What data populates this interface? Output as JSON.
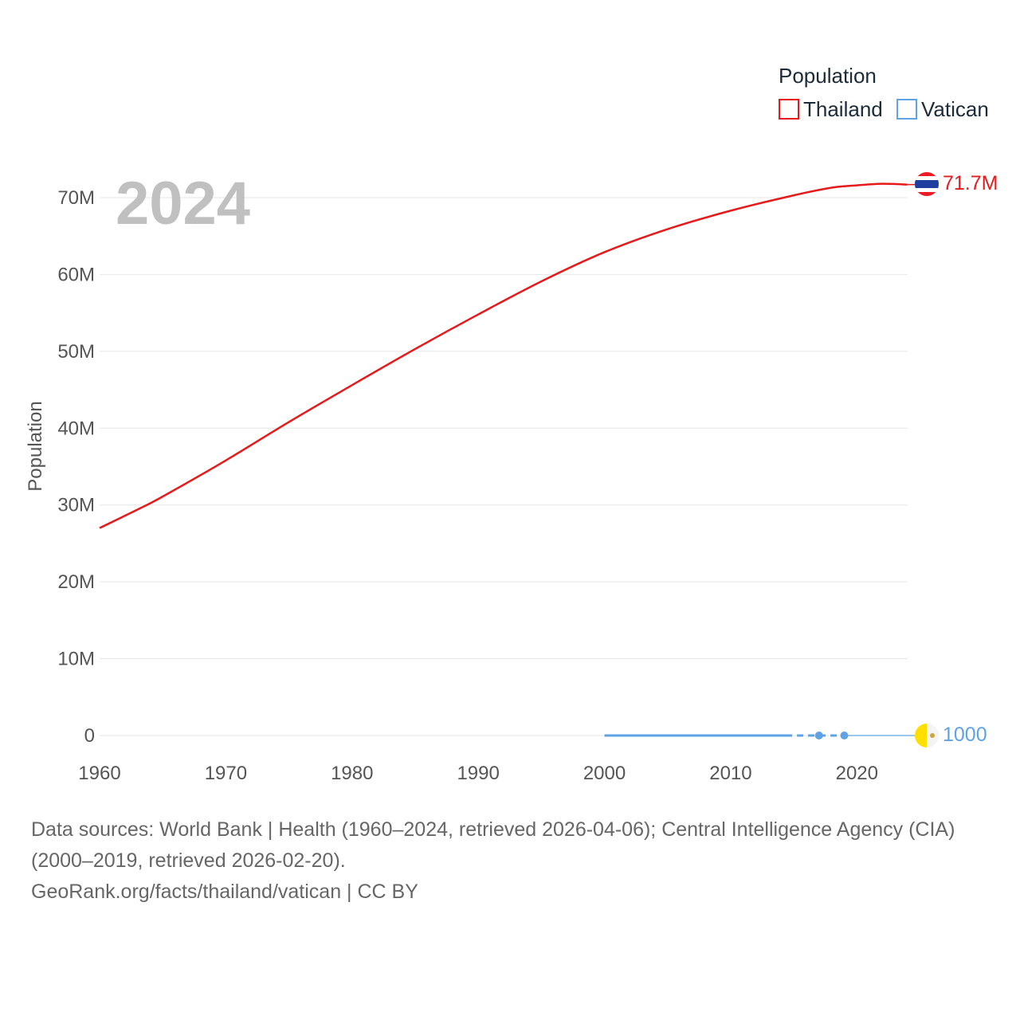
{
  "chart_data": {
    "type": "line",
    "ylabel": "Population",
    "xlim": [
      1960,
      2024
    ],
    "ylim": [
      0,
      75000000
    ],
    "x_ticks": [
      1960,
      1970,
      1980,
      1990,
      2000,
      2010,
      2020
    ],
    "x_tick_labels": [
      "1960",
      "1970",
      "1980",
      "1990",
      "2000",
      "2010",
      "2020"
    ],
    "y_ticks": [
      0,
      10000000,
      20000000,
      30000000,
      40000000,
      50000000,
      60000000,
      70000000
    ],
    "y_tick_labels": [
      "0",
      "10M",
      "20M",
      "30M",
      "40M",
      "50M",
      "60M",
      "70M"
    ],
    "grid": true,
    "year_label": "2024",
    "legend": {
      "title": "Population",
      "position": "top-right"
    },
    "series": [
      {
        "name": "Thailand",
        "color": "#e8191a",
        "end_label": "71.7M",
        "flag": "thailand-flag",
        "x": [
          1960,
          1963,
          1965,
          1970,
          1975,
          1980,
          1985,
          1990,
          1995,
          2000,
          2005,
          2010,
          2015,
          2018,
          2020,
          2022,
          2024
        ],
        "values": [
          27000000,
          29400000,
          31100000,
          35800000,
          40800000,
          45600000,
          50300000,
          54800000,
          59100000,
          62900000,
          65900000,
          68300000,
          70300000,
          71300000,
          71600000,
          71800000,
          71700000
        ]
      },
      {
        "name": "Vatican",
        "color": "#5ea3e6",
        "end_label": "1000",
        "flag": "vatican-flag",
        "x": [
          2000,
          2005,
          2010,
          2015,
          2017,
          2019,
          2024
        ],
        "values": [
          880,
          920,
          830,
          1000,
          1000,
          1000,
          1000
        ]
      }
    ]
  },
  "footer": {
    "sources": "Data sources: World Bank | Health (1960–2024, retrieved 2026-04-06); Central Intelligence Agency (CIA) (2000–2019, retrieved 2026-02-20).",
    "credit": "GeoRank.org/facts/thailand/vatican | CC BY"
  }
}
